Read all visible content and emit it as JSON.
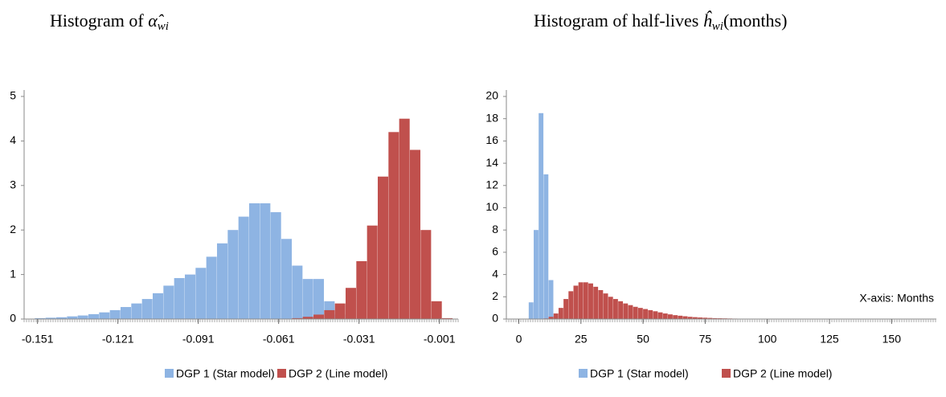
{
  "chart_data": [
    {
      "type": "histogram",
      "title": [
        "Histogram of ",
        "α̂",
        "wi"
      ],
      "bins": [
        -0.152,
        -0.148,
        -0.144,
        -0.14,
        -0.136,
        -0.132,
        -0.128,
        -0.124,
        -0.12,
        -0.116,
        -0.112,
        -0.108,
        -0.104,
        -0.1,
        -0.096,
        -0.092,
        -0.088,
        -0.084,
        -0.08,
        -0.076,
        -0.072,
        -0.068,
        -0.064,
        -0.06,
        -0.056,
        -0.052,
        -0.048,
        -0.044,
        -0.04,
        -0.036,
        -0.032,
        -0.028,
        -0.024,
        -0.02,
        -0.016,
        -0.012,
        -0.008,
        -0.004,
        0,
        0.004
      ],
      "series": [
        {
          "name": "DGP 1 (Star model)",
          "color": "#8eb4e3",
          "values": [
            0.02,
            0.03,
            0.04,
            0.06,
            0.08,
            0.11,
            0.15,
            0.2,
            0.27,
            0.35,
            0.45,
            0.58,
            0.75,
            0.92,
            1.0,
            1.15,
            1.4,
            1.7,
            2.0,
            2.3,
            2.6,
            2.6,
            2.4,
            1.8,
            1.2,
            0.9,
            0.9,
            0.4,
            0.1,
            0.02,
            0,
            0,
            0,
            0,
            0,
            0,
            0,
            0,
            0
          ]
        },
        {
          "name": "DGP 2 (Line model)",
          "color": "#c0504d",
          "values": [
            0,
            0,
            0,
            0,
            0,
            0,
            0,
            0,
            0,
            0,
            0,
            0,
            0,
            0,
            0,
            0,
            0,
            0,
            0,
            0,
            0,
            0,
            0,
            0,
            0.02,
            0.05,
            0.1,
            0.2,
            0.35,
            0.7,
            1.3,
            2.1,
            3.2,
            4.2,
            4.5,
            3.8,
            2.0,
            0.4,
            0.02
          ]
        }
      ],
      "xlim": [
        -0.156,
        0.006
      ],
      "xticks": [
        -0.151,
        -0.121,
        -0.091,
        -0.061,
        -0.031,
        -0.001
      ],
      "ylim": [
        0,
        5
      ],
      "yticks": [
        0,
        1,
        2,
        3,
        4,
        5
      ],
      "grid": false,
      "legend": "bottom"
    },
    {
      "type": "histogram",
      "title": [
        "Histogram of half-lives ",
        "ĥ",
        "wi",
        "(months)"
      ],
      "bins": [
        0,
        2,
        4,
        6,
        8,
        10,
        12,
        14,
        16,
        18,
        20,
        22,
        24,
        26,
        28,
        30,
        32,
        34,
        36,
        38,
        40,
        42,
        44,
        46,
        48,
        50,
        52,
        54,
        56,
        58,
        60,
        62,
        64,
        66,
        68,
        70,
        72,
        74,
        76,
        78,
        80,
        82,
        84,
        86,
        88,
        90,
        92,
        94,
        96,
        98,
        100,
        102,
        104,
        106,
        108,
        110,
        112,
        114,
        116,
        118,
        120
      ],
      "series": [
        {
          "name": "DGP 1 (Star model)",
          "color": "#8eb4e3",
          "values": [
            0,
            0,
            1.5,
            8,
            18.5,
            13,
            3.5,
            0.3,
            0,
            0,
            0,
            0,
            0,
            0,
            0,
            0,
            0,
            0,
            0,
            0,
            0,
            0,
            0,
            0,
            0,
            0,
            0,
            0,
            0,
            0,
            0,
            0,
            0,
            0,
            0,
            0,
            0,
            0,
            0,
            0,
            0,
            0,
            0,
            0,
            0,
            0,
            0,
            0,
            0,
            0,
            0,
            0,
            0,
            0,
            0,
            0,
            0,
            0,
            0,
            0
          ]
        },
        {
          "name": "DGP 2 (Line model)",
          "color": "#c0504d",
          "values": [
            0,
            0,
            0,
            0,
            0,
            0.05,
            0.2,
            0.5,
            1.0,
            1.8,
            2.5,
            3.0,
            3.3,
            3.3,
            3.2,
            2.9,
            2.6,
            2.3,
            2.0,
            1.8,
            1.6,
            1.4,
            1.25,
            1.1,
            1.0,
            0.9,
            0.8,
            0.7,
            0.6,
            0.5,
            0.42,
            0.35,
            0.3,
            0.25,
            0.2,
            0.17,
            0.14,
            0.12,
            0.1,
            0.08,
            0.07,
            0.06,
            0.05,
            0.04,
            0.03,
            0.03,
            0.02,
            0.02,
            0.02,
            0.01,
            0.01,
            0.01,
            0.01,
            0.01,
            0.01,
            0.01,
            0,
            0,
            0,
            0
          ]
        }
      ],
      "xlim": [
        -5,
        168
      ],
      "xticks": [
        0,
        25,
        50,
        75,
        100,
        125,
        150
      ],
      "ylim": [
        0,
        20
      ],
      "yticks": [
        0,
        2,
        4,
        6,
        8,
        10,
        12,
        14,
        16,
        18,
        20
      ],
      "grid": false,
      "legend": "bottom",
      "annotation": "X-axis: Months"
    }
  ]
}
